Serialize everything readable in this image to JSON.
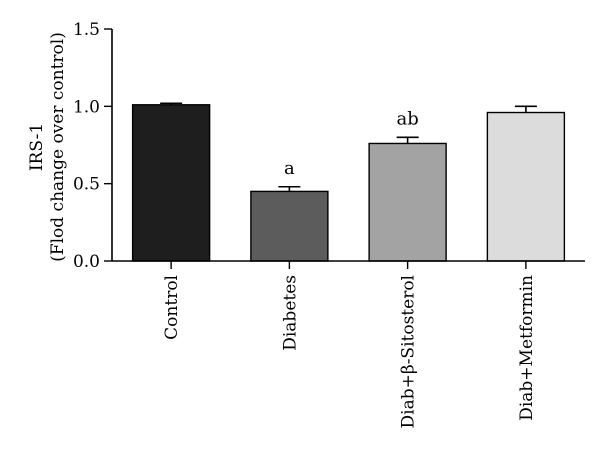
{
  "chart_data": {
    "type": "bar",
    "title": "",
    "ylabel_line1": "IRS-1",
    "ylabel_line2": "(Flod change over control)",
    "xlabel": "",
    "ylim": [
      0,
      1.5
    ],
    "yticks": [
      "0.0",
      "0.5",
      "1.0",
      "1.5"
    ],
    "ytick_values": [
      0,
      0.5,
      1.0,
      1.5
    ],
    "grid": false,
    "categories": [
      "Control",
      "Diabetes",
      "Diab+β-Sitosterol",
      "Diab+Metformin"
    ],
    "values": [
      1.01,
      0.45,
      0.76,
      0.96
    ],
    "errors": [
      0.01,
      0.03,
      0.04,
      0.04
    ],
    "annotations": [
      "",
      "a",
      "ab",
      ""
    ],
    "colors": [
      "#1e1e1e",
      "#5c5c5c",
      "#a3a3a3",
      "#dcdcdc"
    ]
  }
}
